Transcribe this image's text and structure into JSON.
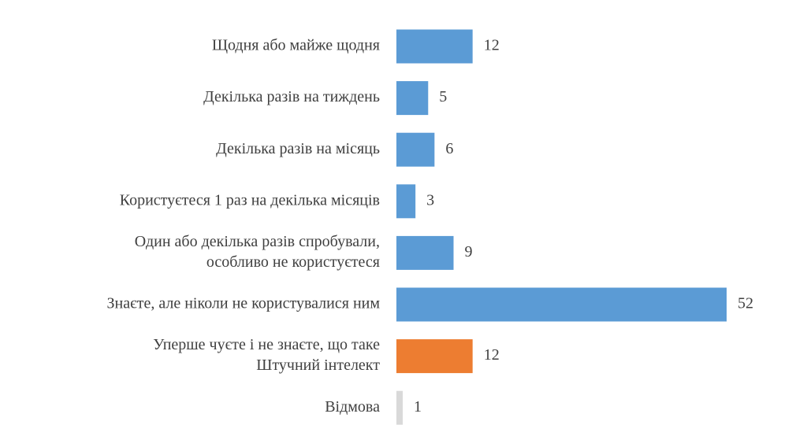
{
  "chart_data": {
    "type": "bar",
    "orientation": "horizontal",
    "categories": [
      [
        "Щодня або майже щодня"
      ],
      [
        "Декілька разів на тиждень"
      ],
      [
        "Декілька разів на місяць"
      ],
      [
        "Користуєтеся 1 раз на декілька місяців"
      ],
      [
        "Один або декілька разів спробували,",
        "особливо не користуєтеся"
      ],
      [
        "Знаєте, але ніколи не користувалися ним"
      ],
      [
        "Уперше чуєте і не знаєте, що таке",
        "Штучний інтелект"
      ],
      [
        "Відмова"
      ]
    ],
    "values": [
      12,
      5,
      6,
      3,
      9,
      52,
      12,
      1
    ],
    "colors": [
      "#5b9bd5",
      "#5b9bd5",
      "#5b9bd5",
      "#5b9bd5",
      "#5b9bd5",
      "#5b9bd5",
      "#ed7d31",
      "#d9d9d9"
    ]
  }
}
